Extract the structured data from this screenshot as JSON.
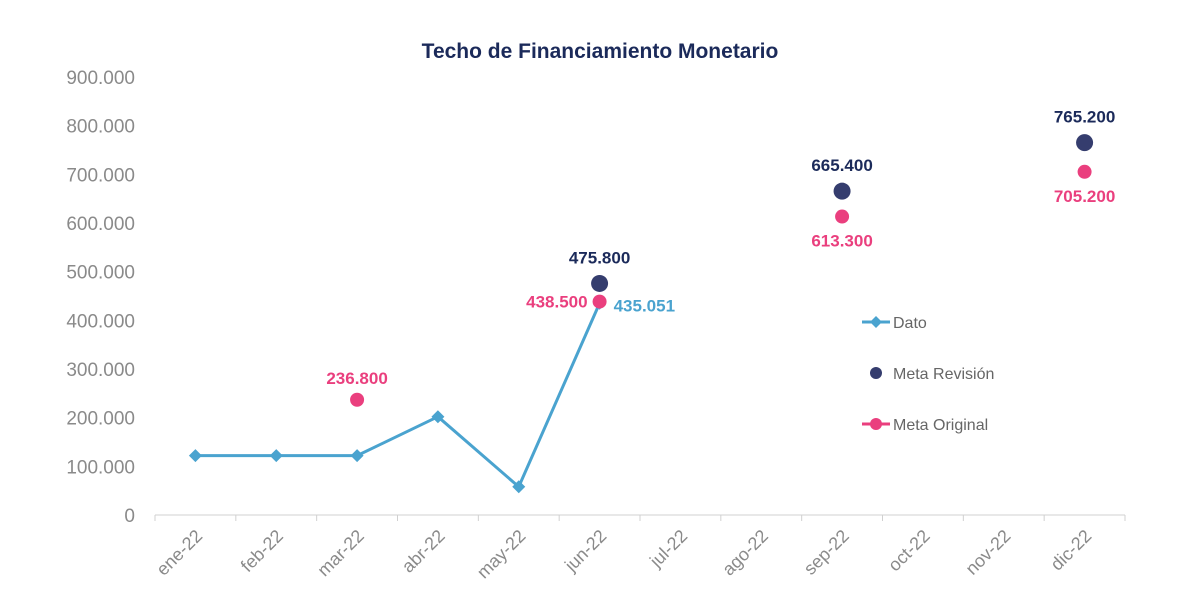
{
  "chart_data": {
    "type": "line",
    "title": "Techo de Financiamiento Monetario",
    "xlabel": "",
    "ylabel": "",
    "categories": [
      "ene-22",
      "feb-22",
      "mar-22",
      "abr-22",
      "may-22",
      "jun-22",
      "jul-22",
      "ago-22",
      "sep-22",
      "oct-22",
      "nov-22",
      "dic-22"
    ],
    "ylim": [
      0,
      900000
    ],
    "yticks": [
      0,
      100000,
      200000,
      300000,
      400000,
      500000,
      600000,
      700000,
      800000,
      900000
    ],
    "ytick_labels": [
      "0",
      "100.000",
      "200.000",
      "300.000",
      "400.000",
      "500.000",
      "600.000",
      "700.000",
      "800.000",
      "900.000"
    ],
    "grid": false,
    "legend_position": "right",
    "series": [
      {
        "name": "Dato",
        "style": "line-diamond",
        "color": "#4aa3cf",
        "values": [
          122000,
          122000,
          122000,
          202000,
          58000,
          435051,
          null,
          null,
          null,
          null,
          null,
          null
        ],
        "labels": [
          null,
          null,
          null,
          null,
          null,
          "435.051",
          null,
          null,
          null,
          null,
          null,
          null
        ]
      },
      {
        "name": "Meta Revisión",
        "style": "marker",
        "color": "#353d6e",
        "label_color": "#1b2a5a",
        "values": [
          null,
          null,
          null,
          null,
          null,
          475800,
          null,
          null,
          665400,
          null,
          null,
          765200
        ],
        "labels": [
          null,
          null,
          null,
          null,
          null,
          "475.800",
          null,
          null,
          "665.400",
          null,
          null,
          "765.200"
        ]
      },
      {
        "name": "Meta Original",
        "style": "marker",
        "color": "#ea3f7e",
        "values": [
          null,
          null,
          236800,
          null,
          null,
          438500,
          null,
          null,
          613300,
          null,
          null,
          705200
        ],
        "labels": [
          null,
          null,
          "236.800",
          null,
          null,
          "438.500",
          null,
          null,
          "613.300",
          null,
          null,
          "705.200"
        ]
      }
    ]
  }
}
